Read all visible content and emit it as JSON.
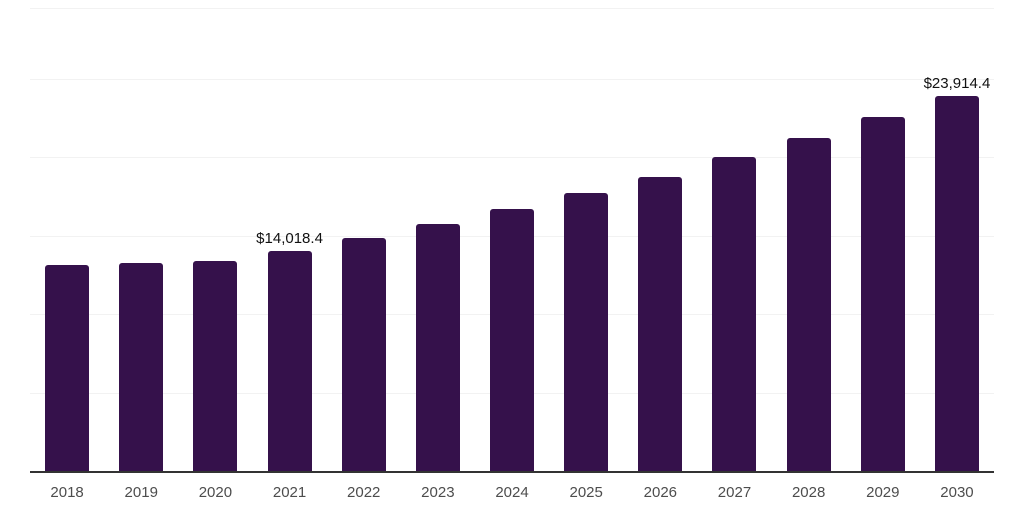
{
  "chart_data": {
    "type": "bar",
    "title": "",
    "xlabel": "",
    "ylabel": "",
    "categories": [
      "2018",
      "2019",
      "2020",
      "2021",
      "2022",
      "2023",
      "2024",
      "2025",
      "2026",
      "2027",
      "2028",
      "2029",
      "2030"
    ],
    "values": [
      13100,
      13250,
      13400,
      14018.4,
      14850,
      15750,
      16700,
      17700,
      18750,
      20000,
      21200,
      22550,
      23914.4
    ],
    "data_labels": [
      {
        "index": 3,
        "text": "$14,018.4"
      },
      {
        "index": 12,
        "text": "$23,914.4"
      }
    ],
    "ylim": [
      0,
      29500
    ],
    "gridline_values": [
      5000,
      10000,
      15000,
      20000,
      25000,
      29500
    ],
    "grid": true,
    "legend": false,
    "colors": {
      "bar": "#35114b",
      "gridline": "#f2f2f2",
      "axis_line": "#333333",
      "tick_label": "#4d4d4d",
      "data_label": "#111111",
      "background": "#ffffff"
    }
  }
}
